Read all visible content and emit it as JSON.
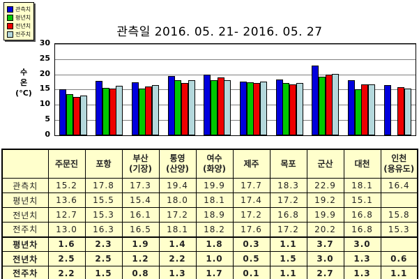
{
  "chart_data": {
    "type": "bar",
    "title": "관측일 2016. 05. 21- 2016. 05. 27",
    "ylabel": "수온(°C)",
    "ylabel_lines": [
      "수",
      "온",
      "(°C)"
    ],
    "ylim": [
      0,
      30
    ],
    "yticks": [
      0,
      5,
      10,
      15,
      20,
      25,
      30
    ],
    "grid": "horizontal-gray",
    "legend_position": "top-left-outside",
    "categories": [
      "주문진",
      "포항",
      "부산(기장)",
      "통영(산양)",
      "여수(화양)",
      "제주",
      "목포",
      "군산",
      "대천",
      "인천(용유도)"
    ],
    "series": [
      {
        "name": "관측치",
        "color": "#0000dd",
        "values": [
          15.2,
          17.8,
          17.3,
          19.4,
          19.9,
          17.7,
          18.3,
          22.9,
          18.1,
          16.4
        ]
      },
      {
        "name": "평년치",
        "color": "#00c800",
        "values": [
          13.6,
          15.5,
          15.4,
          18.0,
          18.1,
          17.4,
          17.2,
          19.2,
          15.1,
          null
        ]
      },
      {
        "name": "전년치",
        "color": "#ee0000",
        "values": [
          12.7,
          15.3,
          16.1,
          17.2,
          18.9,
          17.2,
          16.8,
          19.9,
          16.8,
          15.8
        ]
      },
      {
        "name": "전주치",
        "color": "#b4d8dc",
        "values": [
          13.0,
          16.3,
          16.5,
          18.1,
          18.2,
          17.6,
          17.2,
          20.2,
          16.8,
          15.3
        ]
      }
    ]
  },
  "table": {
    "col_headers": [
      "",
      "주문진",
      "포항",
      "부산\n(기장)",
      "통영\n(산양)",
      "여수\n(화양)",
      "제주",
      "목포",
      "군산",
      "대천",
      "인천\n(용유도)"
    ],
    "rows": [
      {
        "label": "관측치",
        "bold": false,
        "values": [
          "15.2",
          "17.8",
          "17.3",
          "19.4",
          "19.9",
          "17.7",
          "18.3",
          "22.9",
          "18.1",
          "16.4"
        ]
      },
      {
        "label": "평년치",
        "bold": false,
        "values": [
          "13.6",
          "15.5",
          "15.4",
          "18.0",
          "18.1",
          "17.4",
          "17.2",
          "19.2",
          "15.1",
          ""
        ]
      },
      {
        "label": "전년치",
        "bold": false,
        "values": [
          "12.7",
          "15.3",
          "16.1",
          "17.2",
          "18.9",
          "17.2",
          "16.8",
          "19.9",
          "16.8",
          "15.8"
        ]
      },
      {
        "label": "전주치",
        "bold": false,
        "values": [
          "13.0",
          "16.3",
          "16.5",
          "18.1",
          "18.2",
          "17.6",
          "17.2",
          "20.2",
          "16.8",
          "15.3"
        ]
      },
      {
        "label": "평년차",
        "bold": true,
        "values": [
          "1.6",
          "2.3",
          "1.9",
          "1.4",
          "1.8",
          "0.3",
          "1.1",
          "3.7",
          "3.0",
          ""
        ]
      },
      {
        "label": "전년차",
        "bold": true,
        "values": [
          "2.5",
          "2.5",
          "1.2",
          "2.2",
          "1.0",
          "0.5",
          "1.5",
          "3.0",
          "1.3",
          "0.6"
        ]
      },
      {
        "label": "전주차",
        "bold": true,
        "values": [
          "2.2",
          "1.5",
          "0.8",
          "1.3",
          "1.7",
          "0.1",
          "1.1",
          "2.7",
          "1.3",
          "1.1"
        ]
      }
    ]
  },
  "colors": {
    "series_blue": "#0000dd",
    "series_green": "#00c800",
    "series_red": "#ee0000",
    "series_cyan": "#b4d8dc",
    "table_bg": "#ffffcc",
    "legend_bg": "#ffffcc",
    "gridline": "#7f7f7f",
    "border": "#000000"
  }
}
